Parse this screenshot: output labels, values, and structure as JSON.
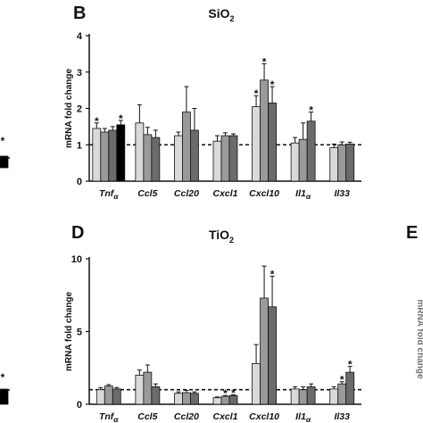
{
  "series_styles": [
    {
      "fill": "#d9d9d9"
    },
    {
      "fill": "#9a9a9a"
    },
    {
      "fill": "#6b6b6b"
    },
    {
      "fill": "#000000"
    }
  ],
  "edge_panels": {
    "left_stars": [
      "*",
      "*"
    ],
    "right_letter": "E",
    "right_ylabel": "mRNA fold change"
  },
  "chart_data": [
    {
      "panel": "B",
      "type": "bar",
      "title": "SiO",
      "title_sub": "2",
      "ylabel": "mRNA fold change",
      "ylim": [
        0,
        4
      ],
      "yticks": [
        "0",
        "1",
        "2",
        "3",
        "4"
      ],
      "reference_line": 1,
      "categories": [
        {
          "name": "Tnf",
          "sub": "α"
        },
        {
          "name": "Ccl5",
          "sub": ""
        },
        {
          "name": "Ccl20",
          "sub": ""
        },
        {
          "name": "Cxcl1",
          "sub": ""
        },
        {
          "name": "Cxcl10",
          "sub": ""
        },
        {
          "name": "Il1",
          "sub": "α"
        },
        {
          "name": "Il33",
          "sub": ""
        }
      ],
      "values": [
        [
          1.45,
          1.35,
          1.4,
          1.55
        ],
        [
          1.6,
          1.28,
          1.2,
          null
        ],
        [
          1.25,
          1.9,
          1.4,
          null
        ],
        [
          1.1,
          1.25,
          1.25,
          null
        ],
        [
          2.05,
          2.78,
          2.15,
          null
        ],
        [
          1.05,
          1.15,
          1.65,
          null
        ],
        [
          0.92,
          1.0,
          1.02,
          null
        ]
      ],
      "errors": [
        [
          0.15,
          0.1,
          0.1,
          0.12
        ],
        [
          0.5,
          0.2,
          0.2,
          null
        ],
        [
          0.1,
          0.7,
          0.6,
          null
        ],
        [
          0.15,
          0.08,
          0.05,
          null
        ],
        [
          0.3,
          0.45,
          0.45,
          null
        ],
        [
          0.15,
          0.45,
          0.25,
          null
        ],
        [
          0.1,
          0.08,
          0.05,
          null
        ]
      ],
      "significance": [
        [
          "*",
          "",
          "",
          "*"
        ],
        [
          "",
          "",
          "",
          ""
        ],
        [
          "",
          "",
          "",
          ""
        ],
        [
          "",
          "",
          "",
          ""
        ],
        [
          "*",
          "*",
          "*",
          ""
        ],
        [
          "",
          "",
          "*",
          ""
        ],
        [
          "",
          "",
          "",
          ""
        ]
      ]
    },
    {
      "panel": "D",
      "type": "bar",
      "title": "TiO",
      "title_sub": "2",
      "ylabel": "mRNA fold change",
      "ylim": [
        0,
        10
      ],
      "yticks": [
        "0",
        "5",
        "10"
      ],
      "reference_line": 1,
      "categories": [
        {
          "name": "Tnf",
          "sub": "α"
        },
        {
          "name": "Ccl5",
          "sub": ""
        },
        {
          "name": "Ccl20",
          "sub": ""
        },
        {
          "name": "Cxcl1",
          "sub": ""
        },
        {
          "name": "Cxcl10",
          "sub": ""
        },
        {
          "name": "Il1",
          "sub": "α"
        },
        {
          "name": "Il33",
          "sub": ""
        }
      ],
      "values": [
        [
          1.0,
          1.25,
          1.05,
          null
        ],
        [
          2.0,
          2.2,
          1.2,
          null
        ],
        [
          0.75,
          0.8,
          0.75,
          null
        ],
        [
          0.45,
          0.55,
          0.6,
          null
        ],
        [
          2.8,
          7.3,
          6.7,
          null
        ],
        [
          1.05,
          1.0,
          1.2,
          null
        ],
        [
          1.05,
          1.4,
          2.2,
          null
        ]
      ],
      "errors": [
        [
          0.15,
          0.1,
          0.1,
          null
        ],
        [
          0.35,
          0.5,
          0.2,
          null
        ],
        [
          0.1,
          0.15,
          0.1,
          null
        ],
        [
          0.05,
          0.05,
          0.05,
          null
        ],
        [
          1.3,
          2.2,
          2.1,
          null
        ],
        [
          0.15,
          0.2,
          0.2,
          null
        ],
        [
          0.15,
          0.15,
          0.4,
          null
        ]
      ],
      "significance": [
        [
          "",
          "",
          "",
          ""
        ],
        [
          "",
          "",
          "",
          ""
        ],
        [
          "",
          "",
          "",
          ""
        ],
        [
          "",
          "*",
          "*",
          ""
        ],
        [
          "",
          "",
          "*",
          ""
        ],
        [
          "",
          "",
          "",
          ""
        ],
        [
          "",
          "*",
          "*",
          ""
        ]
      ]
    }
  ]
}
